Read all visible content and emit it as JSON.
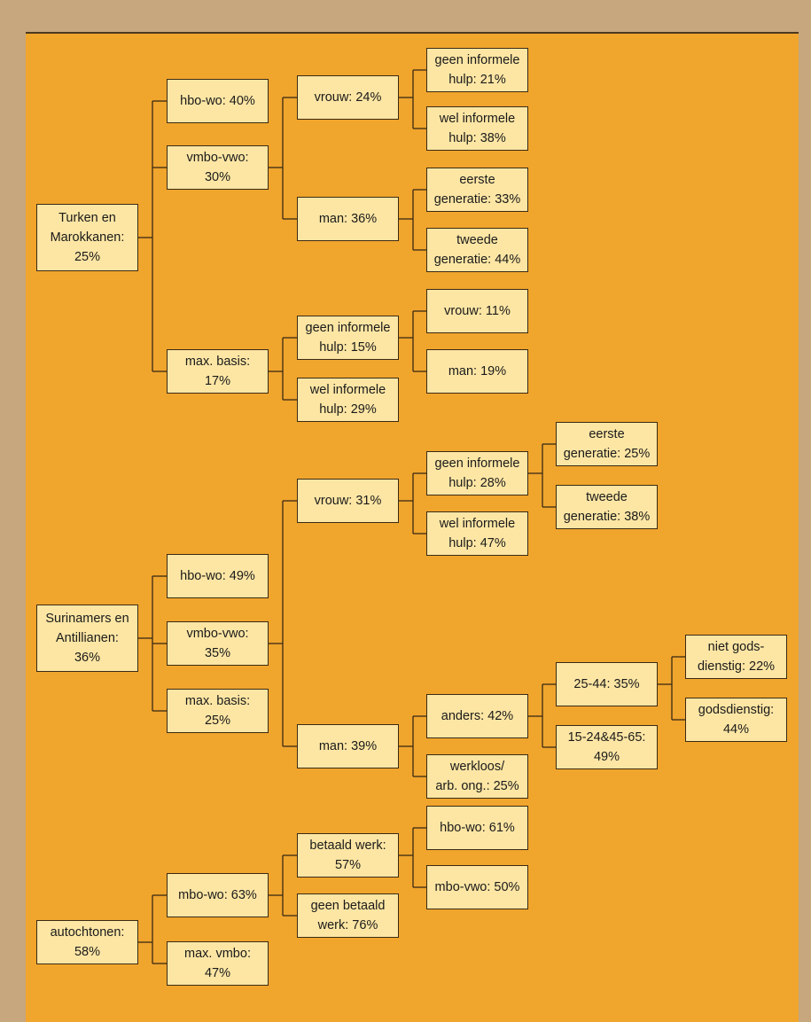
{
  "tree": {
    "label": "Turken en\nMarokkanen:\n25%",
    "children": []
  },
  "nodes": {
    "turken": "Turken en\nMarokkanen:\n25%",
    "tm_hbo": "hbo-wo: 40%",
    "tm_vmbo": "vmbo-vwo:\n30%",
    "tm_max": "max. basis:\n17%",
    "tm_vrouw": "vrouw: 24%",
    "tm_man": "man: 36%",
    "tm_vrouw_geen": "geen informele\nhulp: 21%",
    "tm_vrouw_wel": "wel informele\nhulp: 38%",
    "tm_man_eerste": "eerste\ngeneratie: 33%",
    "tm_man_tweede": "tweede\ngeneratie: 44%",
    "tm_max_geen": "geen informele\nhulp: 15%",
    "tm_max_wel": "wel informele\nhulp: 29%",
    "tm_max_geen_vrouw": "vrouw: 11%",
    "tm_max_geen_man": "man: 19%",
    "suri": "Surinamers en\nAntillianen:\n36%",
    "sa_hbo": "hbo-wo: 49%",
    "sa_vmbo": "vmbo-vwo:\n35%",
    "sa_max": "max. basis:\n25%",
    "sa_vrouw": "vrouw: 31%",
    "sa_man": "man: 39%",
    "sa_vrouw_geen": "geen informele\nhulp: 28%",
    "sa_vrouw_wel": "wel informele\nhulp: 47%",
    "sa_eerste": "eerste\ngeneratie: 25%",
    "sa_tweede": "tweede\ngeneratie: 38%",
    "sa_anders": "anders: 42%",
    "sa_werkloos": "werkloos/\narb. ong.: 25%",
    "sa_2544": "25-44: 35%",
    "sa_1524": "15-24&45-65:\n49%",
    "sa_niet_gods": "niet gods-\ndienstig: 22%",
    "sa_gods": "godsdienstig:\n44%",
    "auto": "autochtonen:\n58%",
    "au_mbo": "mbo-wo: 63%",
    "au_max": "max. vmbo:\n47%",
    "au_betaald": "betaald werk:\n57%",
    "au_geen": "geen betaald\nwerk: 76%",
    "au_hbo": "hbo-wo: 61%",
    "au_mbovwo": "mbo-vwo: 50%"
  },
  "colors": {
    "frame": "#c6a77e",
    "panel": "#f0a52d",
    "box": "#fde6a4",
    "line": "#3a2a14"
  }
}
